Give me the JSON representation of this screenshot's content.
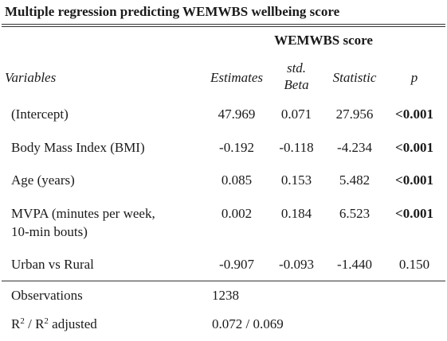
{
  "title": "Multiple regression predicting WEMWBS wellbeing score",
  "column_group": "WEMWBS score",
  "headers": {
    "variables": "Variables",
    "estimates": "Estimates",
    "std_beta_line1": "std.",
    "std_beta_line2": "Beta",
    "statistic": "Statistic",
    "p": "p"
  },
  "rows": [
    {
      "variable": "(Intercept)",
      "estimate": "47.969",
      "std_beta": "0.071",
      "statistic": "27.956",
      "p": "<0.001",
      "p_bold": true
    },
    {
      "variable": "Body Mass Index (BMI)",
      "estimate": "-0.192",
      "std_beta": "-0.118",
      "statistic": "-4.234",
      "p": "<0.001",
      "p_bold": true
    },
    {
      "variable": "Age (years)",
      "estimate": "0.085",
      "std_beta": "0.153",
      "statistic": "5.482",
      "p": "<0.001",
      "p_bold": true
    },
    {
      "variable_line1": "MVPA (minutes per week,",
      "variable_line2": "10-min bouts)",
      "estimate": "0.002",
      "std_beta": "0.184",
      "statistic": "6.523",
      "p": "<0.001",
      "p_bold": true
    },
    {
      "variable": "Urban vs Rural",
      "estimate": "-0.907",
      "std_beta": "-0.093",
      "statistic": "-1.440",
      "p": "0.150",
      "p_bold": false
    }
  ],
  "footer": {
    "observations_label": "Observations",
    "observations_value": "1238",
    "r2_label_a": "R",
    "r2_sup_a": "2",
    "r2_label_mid": " / R",
    "r2_sup_b": "2",
    "r2_label_b": " adjusted",
    "r2_value": "0.072 / 0.069"
  }
}
